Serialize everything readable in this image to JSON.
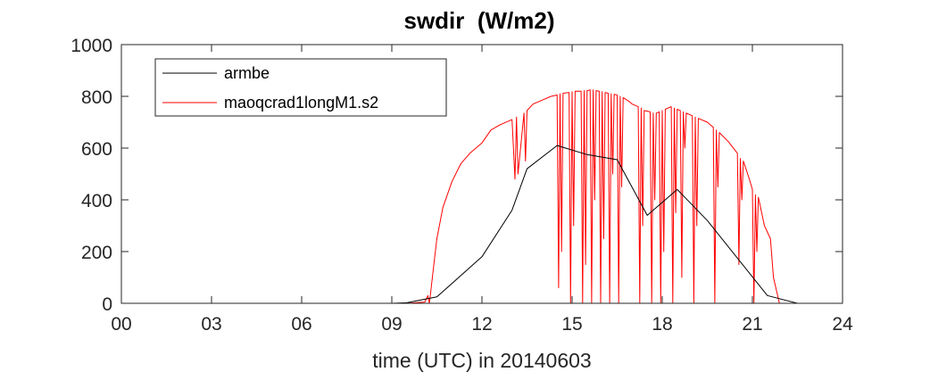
{
  "chart_data": {
    "type": "line",
    "title": "swdir  (W/m2)",
    "xlabel": "time (UTC) in 20140603",
    "ylabel": "",
    "xlim": [
      0,
      24
    ],
    "ylim": [
      0,
      1000
    ],
    "xticks": [
      0,
      3,
      6,
      9,
      12,
      15,
      18,
      21,
      24
    ],
    "xtick_labels": [
      "00",
      "03",
      "06",
      "09",
      "12",
      "15",
      "18",
      "21",
      "24"
    ],
    "yticks": [
      0,
      200,
      400,
      600,
      800,
      1000
    ],
    "ytick_labels": [
      "0",
      "200",
      "400",
      "600",
      "800",
      "1000"
    ],
    "grid": false,
    "legend_position": "top-left",
    "series": [
      {
        "name": "armbe",
        "color": "#000000",
        "x": [
          0,
          1.5,
          3,
          4.5,
          6,
          7.5,
          9,
          9.5,
          10.5,
          12,
          13,
          13.5,
          14.5,
          15.5,
          16.5,
          17.5,
          18.5,
          19.5,
          20.5,
          21.5,
          22.5,
          24
        ],
        "y": [
          0,
          0,
          0,
          0,
          0,
          0,
          0,
          2,
          25,
          180,
          360,
          520,
          610,
          575,
          555,
          340,
          440,
          320,
          175,
          30,
          0,
          0
        ]
      },
      {
        "name": "maoqcrad1longM1.s2",
        "color": "#ff0000",
        "x": [
          0,
          9.5,
          10.1,
          10.2,
          10.25,
          10.3,
          10.4,
          10.5,
          10.7,
          11.0,
          11.3,
          11.6,
          12.0,
          12.3,
          12.6,
          13.0,
          13.1,
          13.15,
          13.2,
          13.4,
          13.45,
          13.5,
          13.7,
          14.0,
          14.3,
          14.5,
          14.55,
          14.6,
          14.65,
          14.7,
          14.9,
          14.95,
          15.0,
          15.05,
          15.1,
          15.3,
          15.35,
          15.4,
          15.45,
          15.5,
          15.6,
          15.65,
          15.7,
          15.75,
          15.8,
          15.9,
          15.95,
          16.0,
          16.05,
          16.1,
          16.2,
          16.25,
          16.3,
          16.35,
          16.4,
          16.5,
          16.55,
          16.6,
          16.65,
          16.7,
          16.9,
          17.0,
          17.2,
          17.25,
          17.3,
          17.35,
          17.4,
          17.6,
          17.65,
          17.7,
          17.75,
          17.8,
          17.9,
          17.95,
          18.0,
          18.05,
          18.1,
          18.3,
          18.35,
          18.4,
          18.45,
          18.5,
          18.6,
          18.65,
          18.7,
          18.75,
          18.8,
          19.0,
          19.05,
          19.1,
          19.15,
          19.2,
          19.5,
          19.7,
          19.75,
          19.8,
          19.85,
          19.9,
          20.2,
          20.5,
          20.55,
          20.6,
          20.65,
          20.7,
          20.9,
          21.0,
          21.05,
          21.1,
          21.15,
          21.2,
          21.4,
          21.6,
          21.7,
          21.9,
          24
        ],
        "y": [
          0,
          0,
          5,
          30,
          0,
          50,
          150,
          250,
          370,
          470,
          540,
          580,
          620,
          670,
          690,
          710,
          480,
          720,
          500,
          735,
          550,
          745,
          770,
          785,
          800,
          805,
          60,
          810,
          200,
          812,
          815,
          0,
          818,
          300,
          820,
          820,
          0,
          822,
          150,
          822,
          825,
          0,
          825,
          400,
          822,
          820,
          0,
          818,
          250,
          815,
          812,
          0,
          810,
          500,
          808,
          805,
          0,
          800,
          450,
          795,
          780,
          770,
          760,
          0,
          755,
          300,
          745,
          740,
          0,
          735,
          400,
          735,
          740,
          0,
          745,
          200,
          750,
          760,
          0,
          755,
          350,
          750,
          745,
          100,
          740,
          600,
          735,
          725,
          0,
          720,
          300,
          715,
          700,
          680,
          0,
          670,
          450,
          660,
          625,
          580,
          150,
          560,
          400,
          550,
          480,
          440,
          0,
          420,
          200,
          410,
          300,
          250,
          100,
          0,
          0
        ]
      }
    ]
  }
}
